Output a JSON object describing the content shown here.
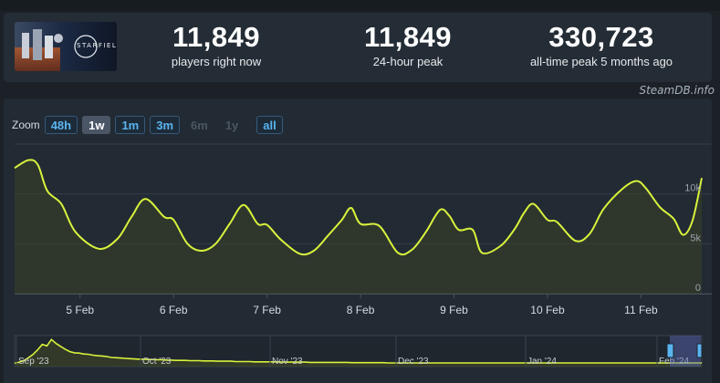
{
  "stats": [
    {
      "value": "11,849",
      "label": "players right now"
    },
    {
      "value": "11,849",
      "label": "24-hour peak"
    },
    {
      "value": "330,723",
      "label": "all-time peak 5 months ago"
    }
  ],
  "game": {
    "name": "STARFIELD"
  },
  "credit": "SteamDB.info",
  "zoom": {
    "label": "Zoom",
    "buttons": [
      {
        "label": "48h",
        "state": "enabled"
      },
      {
        "label": "1w",
        "state": "active"
      },
      {
        "label": "1m",
        "state": "enabled"
      },
      {
        "label": "3m",
        "state": "enabled"
      },
      {
        "label": "6m",
        "state": "disabled"
      },
      {
        "label": "1y",
        "state": "disabled"
      },
      {
        "label": "all",
        "state": "enabled"
      }
    ]
  },
  "colors": {
    "line": "#d8f23c",
    "fill": "#3a4226",
    "grid": "#343d47",
    "accent": "#5ab4f0"
  },
  "chart_data": {
    "type": "area",
    "series": [
      {
        "x": [
          4.3,
          4.45,
          4.55,
          4.65,
          4.8,
          4.95,
          5.2,
          5.4,
          5.55,
          5.7,
          5.9,
          6.0,
          6.15,
          6.3,
          6.45,
          6.6,
          6.75,
          6.9,
          7.0,
          7.15,
          7.35,
          7.5,
          7.65,
          7.8,
          7.9,
          8.0,
          8.2,
          8.4,
          8.55,
          8.7,
          8.85,
          8.95,
          9.05,
          9.2,
          9.3,
          9.5,
          9.65,
          9.75,
          9.85,
          10.0,
          10.1,
          10.3,
          10.45,
          10.6,
          10.8,
          10.95,
          11.05,
          11.2,
          11.35,
          11.45,
          11.55,
          11.65
        ],
        "y": [
          12.6,
          13.4,
          12.9,
          10.3,
          9.0,
          6.2,
          4.5,
          5.5,
          7.7,
          9.5,
          7.7,
          7.4,
          5.0,
          4.3,
          5.0,
          7.0,
          8.9,
          7.0,
          6.9,
          5.4,
          4.0,
          4.3,
          5.8,
          7.4,
          8.6,
          7.0,
          6.8,
          4.1,
          4.4,
          6.2,
          8.4,
          7.8,
          6.4,
          6.4,
          4.1,
          4.8,
          6.5,
          8.1,
          9.0,
          7.4,
          7.2,
          5.3,
          6.0,
          8.5,
          10.5,
          11.3,
          10.6,
          8.7,
          7.5,
          5.9,
          7.3,
          11.6
        ]
      }
    ],
    "xticks": [
      "5 Feb",
      "6 Feb",
      "7 Feb",
      "8 Feb",
      "9 Feb",
      "10 Feb",
      "11 Feb"
    ],
    "xtick_values": [
      5,
      6,
      7,
      8,
      9,
      10,
      11
    ],
    "yticks": [
      "0",
      "5k",
      "10k"
    ],
    "ytick_values": [
      0,
      5,
      10
    ],
    "ylim": [
      0,
      15
    ],
    "xlim": [
      4.3,
      11.65
    ],
    "grid": true,
    "navigator": {
      "labels": [
        "Sep '23",
        "Oct '23",
        "Nov '23",
        "Dec '23",
        "Jan '24",
        "Feb '24"
      ],
      "values": [
        100,
        300,
        560,
        1050,
        1620,
        2420,
        3350,
        3100,
        4200,
        3500,
        3000,
        2500,
        2100,
        1900,
        1850,
        1700,
        1650,
        1500,
        1400,
        1350,
        1250,
        1100,
        1050,
        1000,
        950,
        900,
        850,
        800,
        800,
        750,
        750,
        700,
        700,
        650,
        650,
        600,
        600,
        600,
        550,
        550,
        550,
        500,
        500,
        500,
        450,
        450,
        450,
        450,
        400,
        400,
        400,
        400,
        350,
        350,
        350,
        350,
        350,
        350,
        300,
        300,
        300,
        300,
        300,
        300,
        250,
        250,
        250,
        250,
        250,
        250,
        250,
        250,
        250,
        200,
        200,
        200,
        200,
        200,
        200,
        200,
        200,
        150,
        150,
        150,
        150,
        150,
        150,
        150,
        150,
        150,
        150,
        150,
        150,
        150,
        150,
        150,
        150,
        150,
        150,
        150,
        150,
        150,
        150,
        150,
        150,
        150,
        150,
        150,
        150,
        150,
        150,
        150,
        150,
        150,
        150,
        150,
        150,
        150,
        150,
        150,
        150,
        150,
        150,
        150,
        150,
        150,
        150,
        150,
        150,
        150,
        150,
        150,
        150,
        150,
        150,
        150,
        150,
        150,
        150,
        150,
        150,
        150,
        150,
        150,
        150,
        150,
        150,
        150,
        150,
        150
      ]
    }
  }
}
